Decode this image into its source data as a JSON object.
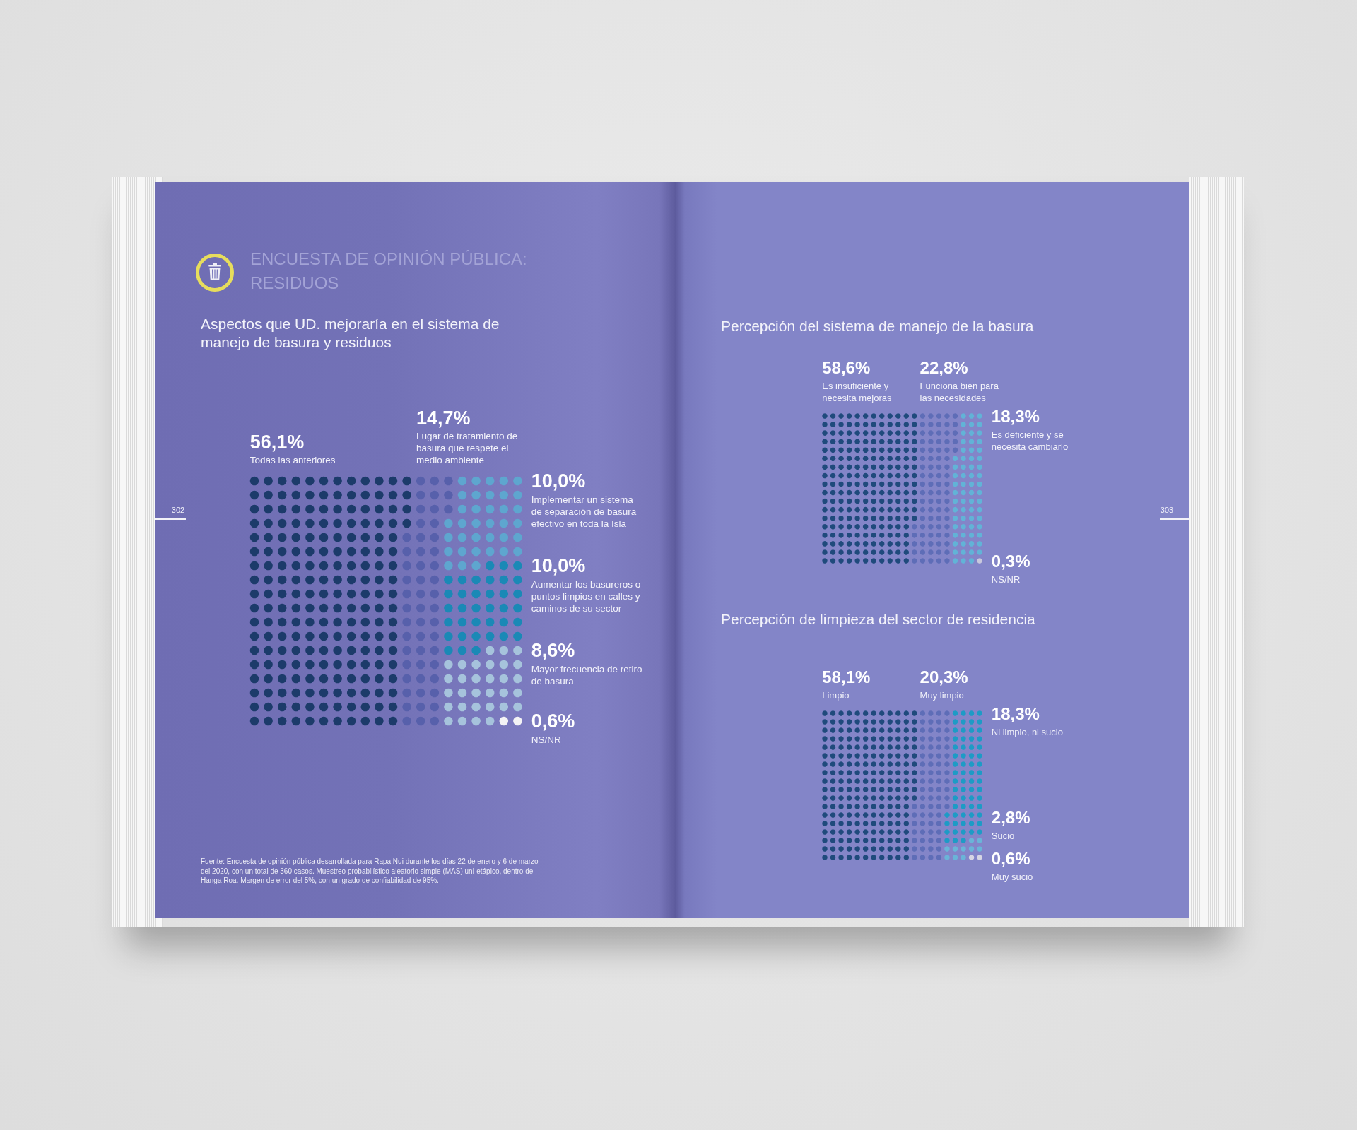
{
  "chart_data": [
    {
      "type": "other",
      "title": "ENCUESTA DE OPINIÓN PÚBLICA: RESIDUOS"
    },
    {
      "type": "other",
      "title": "Aspectos que UD. mejoraría en el sistema de manejo de basura y residuos",
      "categories": [
        "Todas las anteriores",
        "Lugar de tratamiento de basura que respete el medio ambiente",
        "Implementar un sistema de separación de basura efectivo en toda la Isla",
        "Aumentar los basureros o puntos limpios en calles y caminos de su sector",
        "Mayor frecuencia de retiro de basura",
        "NS/NR"
      ],
      "values": [
        56.1,
        14.7,
        10.0,
        10.0,
        8.6,
        0.6
      ],
      "value_labels": [
        "56,1%",
        "14,7%",
        "10,0%",
        "10,0%",
        "8,6%",
        "0,6%"
      ],
      "colors": [
        "#1c3b6a",
        "#5760ab",
        "#5ea6cf",
        "#1a89b6",
        "#a6c3dc",
        "#f3f3f5"
      ],
      "annotations": [
        "302",
        "Fuente: Encuesta de opinión pública desarrollada para Rapa Nui durante los días 22 de enero y 6 de marzo del 2020, con un total de 360 casos. Muestreo probabilístico aleatorio simple (MAS) uni-etápico, dentro de Hanga Roa. Margen de error del 5%, con un grado de confiabilidad de 95%."
      ]
    },
    {
      "type": "other",
      "title": "Percepción del sistema de manejo de la basura",
      "categories": [
        "Es insuficiente y necesita mejoras",
        "Funciona bien para las necesidades",
        "Es deficiente y se necesita cambiarlo",
        "NS/NR"
      ],
      "values": [
        58.6,
        22.8,
        18.3,
        0.3
      ],
      "value_labels": [
        "58,6%",
        "22,8%",
        "18,3%",
        "0,3%"
      ],
      "colors": [
        "#1f4a7c",
        "#5e6db7",
        "#62b3d7",
        "#c8c8dc"
      ],
      "annotations": [
        "303"
      ]
    },
    {
      "type": "other",
      "title": "Percepción de limpieza del sector de residencia",
      "categories": [
        "Limpio",
        "Muy limpio",
        "Ni limpio, ni sucio",
        "Sucio",
        "Muy sucio"
      ],
      "values": [
        58.1,
        20.3,
        18.3,
        2.8,
        0.6
      ],
      "value_labels": [
        "58,1%",
        "20,3%",
        "18,3%",
        "2,8%",
        "0,6%"
      ],
      "colors": [
        "#1f4a7c",
        "#5e6db7",
        "#1d9bc6",
        "#6ab4d8",
        "#d6d6e4"
      ]
    }
  ]
}
